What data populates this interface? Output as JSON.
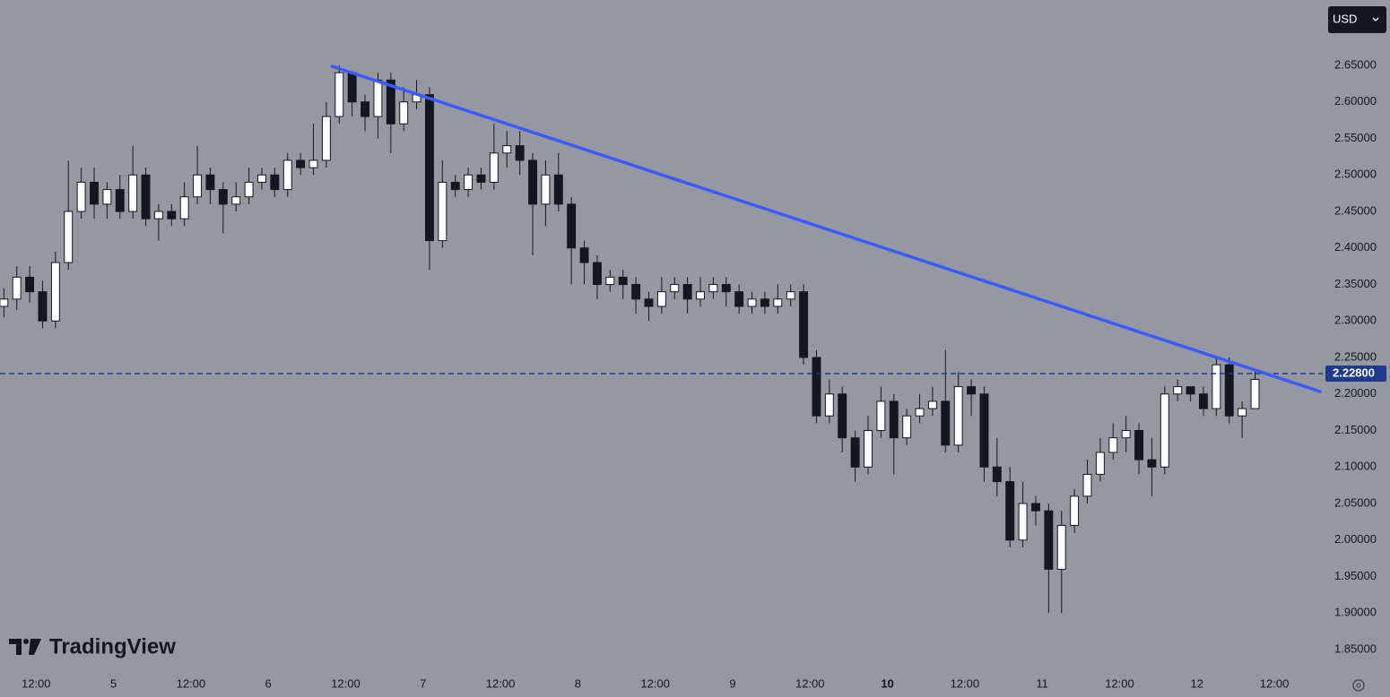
{
  "chart_data": {
    "type": "candlestick",
    "currency": "USD",
    "logo": "TradingView",
    "candles": {
      "up_color": "#ffffff",
      "down_color": "#131722",
      "wick_color": "#131722",
      "x": [
        7,
        9,
        11,
        13,
        15,
        17,
        19,
        21,
        23,
        25,
        27,
        29,
        31,
        33,
        35,
        37,
        39,
        41,
        43,
        45,
        47,
        49,
        51,
        53,
        55,
        57,
        59,
        61,
        63,
        65,
        67,
        69,
        71,
        73,
        75,
        77,
        79,
        81,
        83,
        85,
        87,
        89,
        91,
        93,
        95,
        97,
        99,
        101,
        103,
        105,
        107,
        109,
        111,
        113,
        115,
        117,
        119,
        121,
        123,
        125,
        127,
        129,
        131,
        133,
        135,
        137,
        139,
        141,
        143,
        145,
        147,
        149,
        151,
        153,
        155,
        157,
        159,
        161,
        163,
        165,
        167,
        169,
        171,
        173,
        175,
        177,
        179,
        181,
        183,
        185,
        187,
        189,
        191,
        193,
        195,
        197,
        199,
        201
      ],
      "open": [
        2.32,
        2.33,
        2.36,
        2.34,
        2.3,
        2.38,
        2.45,
        2.49,
        2.46,
        2.48,
        2.45,
        2.5,
        2.44,
        2.45,
        2.44,
        2.47,
        2.5,
        2.48,
        2.46,
        2.47,
        2.49,
        2.5,
        2.48,
        2.52,
        2.51,
        2.52,
        2.58,
        2.64,
        2.6,
        2.58,
        2.63,
        2.57,
        2.6,
        2.61,
        2.41,
        2.49,
        2.48,
        2.5,
        2.49,
        2.53,
        2.54,
        2.52,
        2.46,
        2.5,
        2.46,
        2.4,
        2.38,
        2.35,
        2.36,
        2.35,
        2.33,
        2.32,
        2.34,
        2.35,
        2.33,
        2.34,
        2.35,
        2.34,
        2.32,
        2.33,
        2.32,
        2.33,
        2.34,
        2.25,
        2.17,
        2.2,
        2.14,
        2.1,
        2.15,
        2.19,
        2.14,
        2.17,
        2.18,
        2.19,
        2.13,
        2.21,
        2.2,
        2.1,
        2.08,
        2.0,
        2.05,
        2.04,
        1.96,
        2.02,
        2.06,
        2.09,
        2.12,
        2.14,
        2.15,
        2.11,
        2.1,
        2.2,
        2.21,
        2.2,
        2.18,
        2.24,
        2.17,
        2.18
      ],
      "high": [
        2.345,
        2.375,
        2.375,
        2.355,
        2.395,
        2.52,
        2.51,
        2.51,
        2.49,
        2.5,
        2.54,
        2.51,
        2.46,
        2.46,
        2.49,
        2.54,
        2.51,
        2.49,
        2.49,
        2.51,
        2.51,
        2.51,
        2.53,
        2.53,
        2.57,
        2.6,
        2.65,
        2.64,
        2.61,
        2.64,
        2.64,
        2.62,
        2.63,
        2.62,
        2.52,
        2.5,
        2.51,
        2.51,
        2.57,
        2.56,
        2.56,
        2.53,
        2.52,
        2.53,
        2.47,
        2.41,
        2.39,
        2.37,
        2.37,
        2.36,
        2.34,
        2.36,
        2.36,
        2.36,
        2.36,
        2.36,
        2.36,
        2.35,
        2.34,
        2.34,
        2.35,
        2.35,
        2.35,
        2.26,
        2.22,
        2.21,
        2.15,
        2.17,
        2.21,
        2.2,
        2.18,
        2.2,
        2.21,
        2.26,
        2.23,
        2.22,
        2.21,
        2.14,
        2.1,
        2.08,
        2.06,
        2.05,
        2.04,
        2.07,
        2.11,
        2.14,
        2.16,
        2.17,
        2.16,
        2.14,
        2.21,
        2.22,
        2.21,
        2.21,
        2.25,
        2.25,
        2.19,
        2.23
      ],
      "low": [
        2.305,
        2.315,
        2.325,
        2.29,
        2.29,
        2.37,
        2.44,
        2.44,
        2.44,
        2.44,
        2.44,
        2.43,
        2.41,
        2.43,
        2.43,
        2.46,
        2.46,
        2.42,
        2.45,
        2.46,
        2.48,
        2.47,
        2.47,
        2.5,
        2.5,
        2.51,
        2.57,
        2.58,
        2.56,
        2.55,
        2.53,
        2.56,
        2.59,
        2.37,
        2.4,
        2.47,
        2.47,
        2.48,
        2.48,
        2.51,
        2.5,
        2.39,
        2.43,
        2.45,
        2.35,
        2.35,
        2.33,
        2.34,
        2.33,
        2.31,
        2.3,
        2.31,
        2.33,
        2.31,
        2.32,
        2.33,
        2.32,
        2.31,
        2.31,
        2.31,
        2.31,
        2.32,
        2.24,
        2.16,
        2.16,
        2.12,
        2.08,
        2.09,
        2.14,
        2.09,
        2.13,
        2.16,
        2.17,
        2.12,
        2.12,
        2.17,
        2.08,
        2.06,
        1.99,
        1.99,
        2.02,
        1.9,
        1.9,
        2.01,
        2.05,
        2.08,
        2.11,
        2.12,
        2.09,
        2.06,
        2.09,
        2.19,
        2.19,
        2.17,
        2.17,
        2.16,
        2.14,
        2.19
      ],
      "close": [
        2.33,
        2.36,
        2.34,
        2.3,
        2.38,
        2.45,
        2.49,
        2.46,
        2.48,
        2.45,
        2.5,
        2.44,
        2.45,
        2.44,
        2.47,
        2.5,
        2.48,
        2.46,
        2.47,
        2.49,
        2.5,
        2.48,
        2.52,
        2.51,
        2.52,
        2.58,
        2.64,
        2.6,
        2.58,
        2.63,
        2.57,
        2.6,
        2.61,
        2.41,
        2.49,
        2.48,
        2.5,
        2.49,
        2.53,
        2.54,
        2.52,
        2.46,
        2.5,
        2.46,
        2.4,
        2.38,
        2.35,
        2.36,
        2.35,
        2.33,
        2.32,
        2.34,
        2.35,
        2.33,
        2.34,
        2.35,
        2.34,
        2.32,
        2.33,
        2.32,
        2.33,
        2.34,
        2.25,
        2.17,
        2.2,
        2.14,
        2.1,
        2.15,
        2.19,
        2.14,
        2.17,
        2.18,
        2.19,
        2.13,
        2.21,
        2.2,
        2.1,
        2.08,
        2.0,
        2.05,
        2.04,
        1.96,
        2.02,
        2.06,
        2.09,
        2.12,
        2.14,
        2.15,
        2.11,
        2.1,
        2.2,
        2.21,
        2.2,
        2.18,
        2.24,
        2.17,
        2.18,
        2.22
      ]
    },
    "trendline": {
      "x": [
        57.9,
        211.1
      ],
      "y": [
        2.6488,
        2.2034
      ],
      "color": "#3d5afe"
    },
    "last_price": {
      "value": 2.228,
      "label": "2.22800",
      "color": "#1e3a8a"
    },
    "xlim": [
      6.4,
      211.5
    ],
    "ylim": [
      1.8255,
      2.7396
    ],
    "yticks": [
      {
        "value": 2.65,
        "label": "2.65000"
      },
      {
        "value": 2.6,
        "label": "2.60000"
      },
      {
        "value": 2.55,
        "label": "2.55000"
      },
      {
        "value": 2.5,
        "label": "2.50000"
      },
      {
        "value": 2.45,
        "label": "2.45000"
      },
      {
        "value": 2.4,
        "label": "2.40000"
      },
      {
        "value": 2.35,
        "label": "2.35000"
      },
      {
        "value": 2.3,
        "label": "2.30000"
      },
      {
        "value": 2.25,
        "label": "2.25000"
      },
      {
        "value": 2.2,
        "label": "2.20000"
      },
      {
        "value": 2.15,
        "label": "2.15000"
      },
      {
        "value": 2.1,
        "label": "2.10000"
      },
      {
        "value": 2.05,
        "label": "2.05000"
      },
      {
        "value": 2.0,
        "label": "2.00000"
      },
      {
        "value": 1.95,
        "label": "1.95000"
      },
      {
        "value": 1.9,
        "label": "1.90000"
      },
      {
        "value": 1.85,
        "label": "1.85000"
      }
    ],
    "xticks": [
      {
        "value": 12,
        "label": "12:00"
      },
      {
        "value": 24,
        "label": "5"
      },
      {
        "value": 36,
        "label": "12:00"
      },
      {
        "value": 48,
        "label": "6"
      },
      {
        "value": 60,
        "label": "12:00"
      },
      {
        "value": 72,
        "label": "7"
      },
      {
        "value": 84,
        "label": "12:00"
      },
      {
        "value": 96,
        "label": "8"
      },
      {
        "value": 108,
        "label": "12:00"
      },
      {
        "value": 120,
        "label": "9"
      },
      {
        "value": 132,
        "label": "12:00"
      },
      {
        "value": 144,
        "label": "10",
        "bold": true
      },
      {
        "value": 156,
        "label": "12:00"
      },
      {
        "value": 168,
        "label": "11"
      },
      {
        "value": 180,
        "label": "12:00"
      },
      {
        "value": 192,
        "label": "12"
      },
      {
        "value": 204,
        "label": "12:00"
      }
    ]
  }
}
